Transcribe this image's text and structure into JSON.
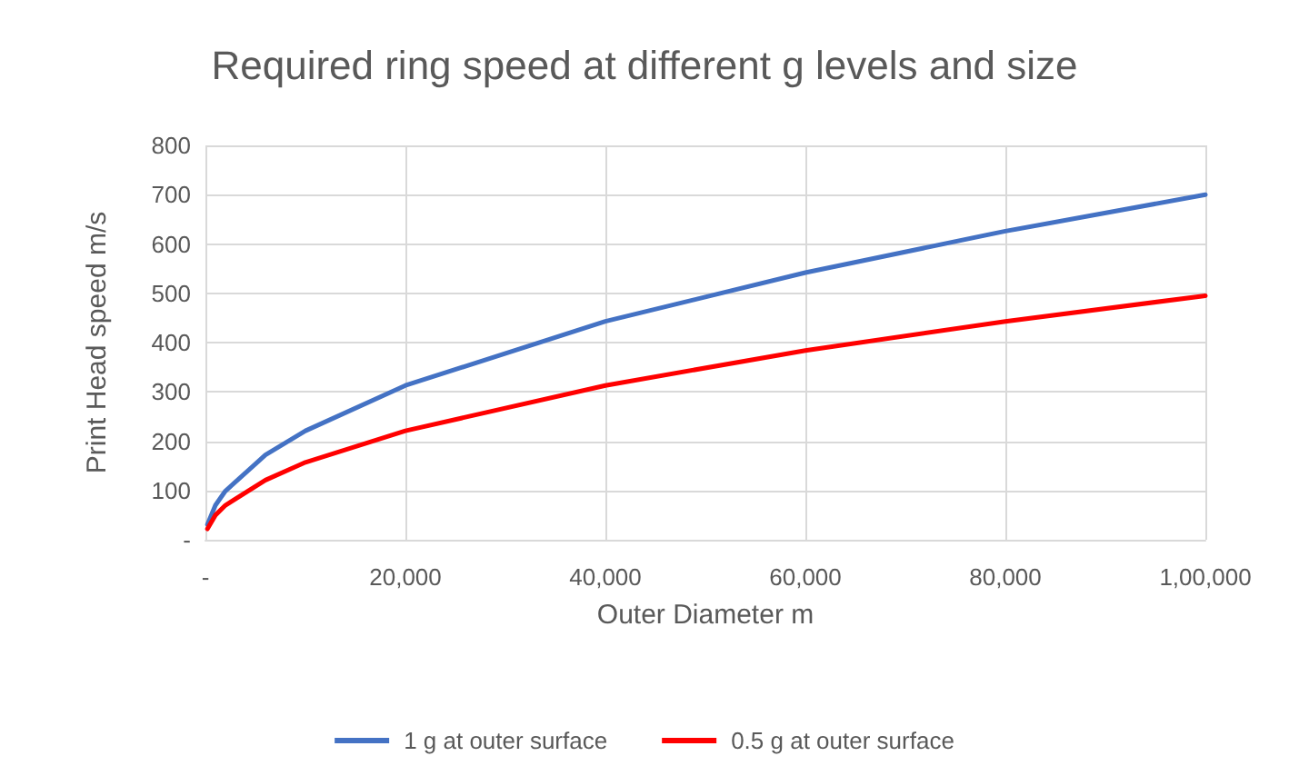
{
  "chart_data": {
    "type": "line",
    "title": "Required ring speed at different g levels and size",
    "xlabel": "Outer Diameter m",
    "ylabel": "Print Head speed m/s",
    "x": [
      200,
      1000,
      2000,
      6000,
      10000,
      20000,
      40000,
      60000,
      80000,
      100000
    ],
    "series": [
      {
        "name": "1 g at outer surface",
        "color": "#4472c4",
        "values": [
          31,
          70,
          99,
          172,
          221,
          313,
          443,
          542,
          626,
          700
        ]
      },
      {
        "name": "0.5 g at outer surface",
        "color": "#ff0000",
        "values": [
          22,
          50,
          70,
          121,
          157,
          221,
          313,
          384,
          443,
          495
        ]
      }
    ],
    "xlim": [
      0,
      100000
    ],
    "xticks": [
      {
        "value": 0,
        "label": "-"
      },
      {
        "value": 20000,
        "label": "20,000"
      },
      {
        "value": 40000,
        "label": "40,000"
      },
      {
        "value": 60000,
        "label": "60,000"
      },
      {
        "value": 80000,
        "label": "80,000"
      },
      {
        "value": 100000,
        "label": "1,00,000"
      }
    ],
    "ylim": [
      0,
      800
    ],
    "yticks": [
      {
        "value": 0,
        "label": "-"
      },
      100,
      200,
      300,
      400,
      500,
      600,
      700,
      800
    ],
    "grid": true,
    "legend": "bottom",
    "marker": "none",
    "line_style": "solid"
  }
}
